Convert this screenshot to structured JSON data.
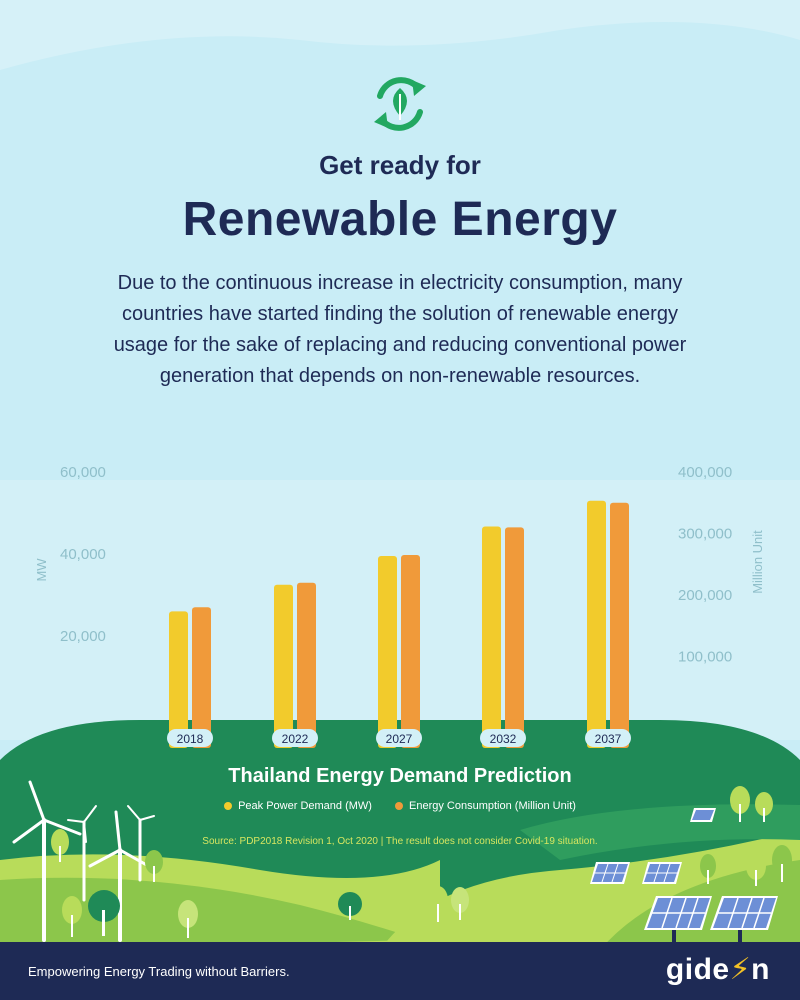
{
  "header": {
    "icon": "recycle-leaf-icon",
    "subtitle": "Get ready for",
    "title": "Renewable Energy",
    "description": "Due to the continuous increase in electricity consumption, many countries have started finding the solution of renewable energy usage for the sake of replacing and reducing conventional power generation that depends on non-renewable resources."
  },
  "chart_data": {
    "type": "bar",
    "title": "Thailand Energy Demand Prediction",
    "categories": [
      "2018",
      "2022",
      "2027",
      "2032",
      "2037"
    ],
    "series": [
      {
        "name": "Peak Power Demand (MW)",
        "axis": "left",
        "color": "#f2cb2c",
        "values": [
          26000,
          32500,
          39500,
          46700,
          53000
        ]
      },
      {
        "name": "Energy Consumption (Million Unit)",
        "axis": "right",
        "color": "#f09a3a",
        "values": [
          180000,
          220000,
          265000,
          310000,
          350000
        ]
      }
    ],
    "ylabel_left": "MW",
    "ylabel_right": "Million Unit",
    "ylim_left": [
      0,
      60000
    ],
    "ylim_right": [
      0,
      400000
    ],
    "yticks_left": [
      "20,000",
      "40,000",
      "60,000"
    ],
    "yticks_right": [
      "100,000",
      "200,000",
      "300,000",
      "400,000"
    ],
    "source": "Source: PDP2018 Revision 1, Oct 2020  |  The result does not consider Covid-19 situation."
  },
  "footer": {
    "tagline": "Empowering Energy Trading without Barriers.",
    "brand_prefix": "gide",
    "brand_bolt": "⚡",
    "brand_suffix": "n"
  },
  "colors": {
    "navy": "#1e2a55",
    "sky": "#c9edf6",
    "green_dark": "#1f8a57",
    "green_light": "#b8dc5a",
    "yellow": "#f2cb2c",
    "orange": "#f09a3a"
  }
}
